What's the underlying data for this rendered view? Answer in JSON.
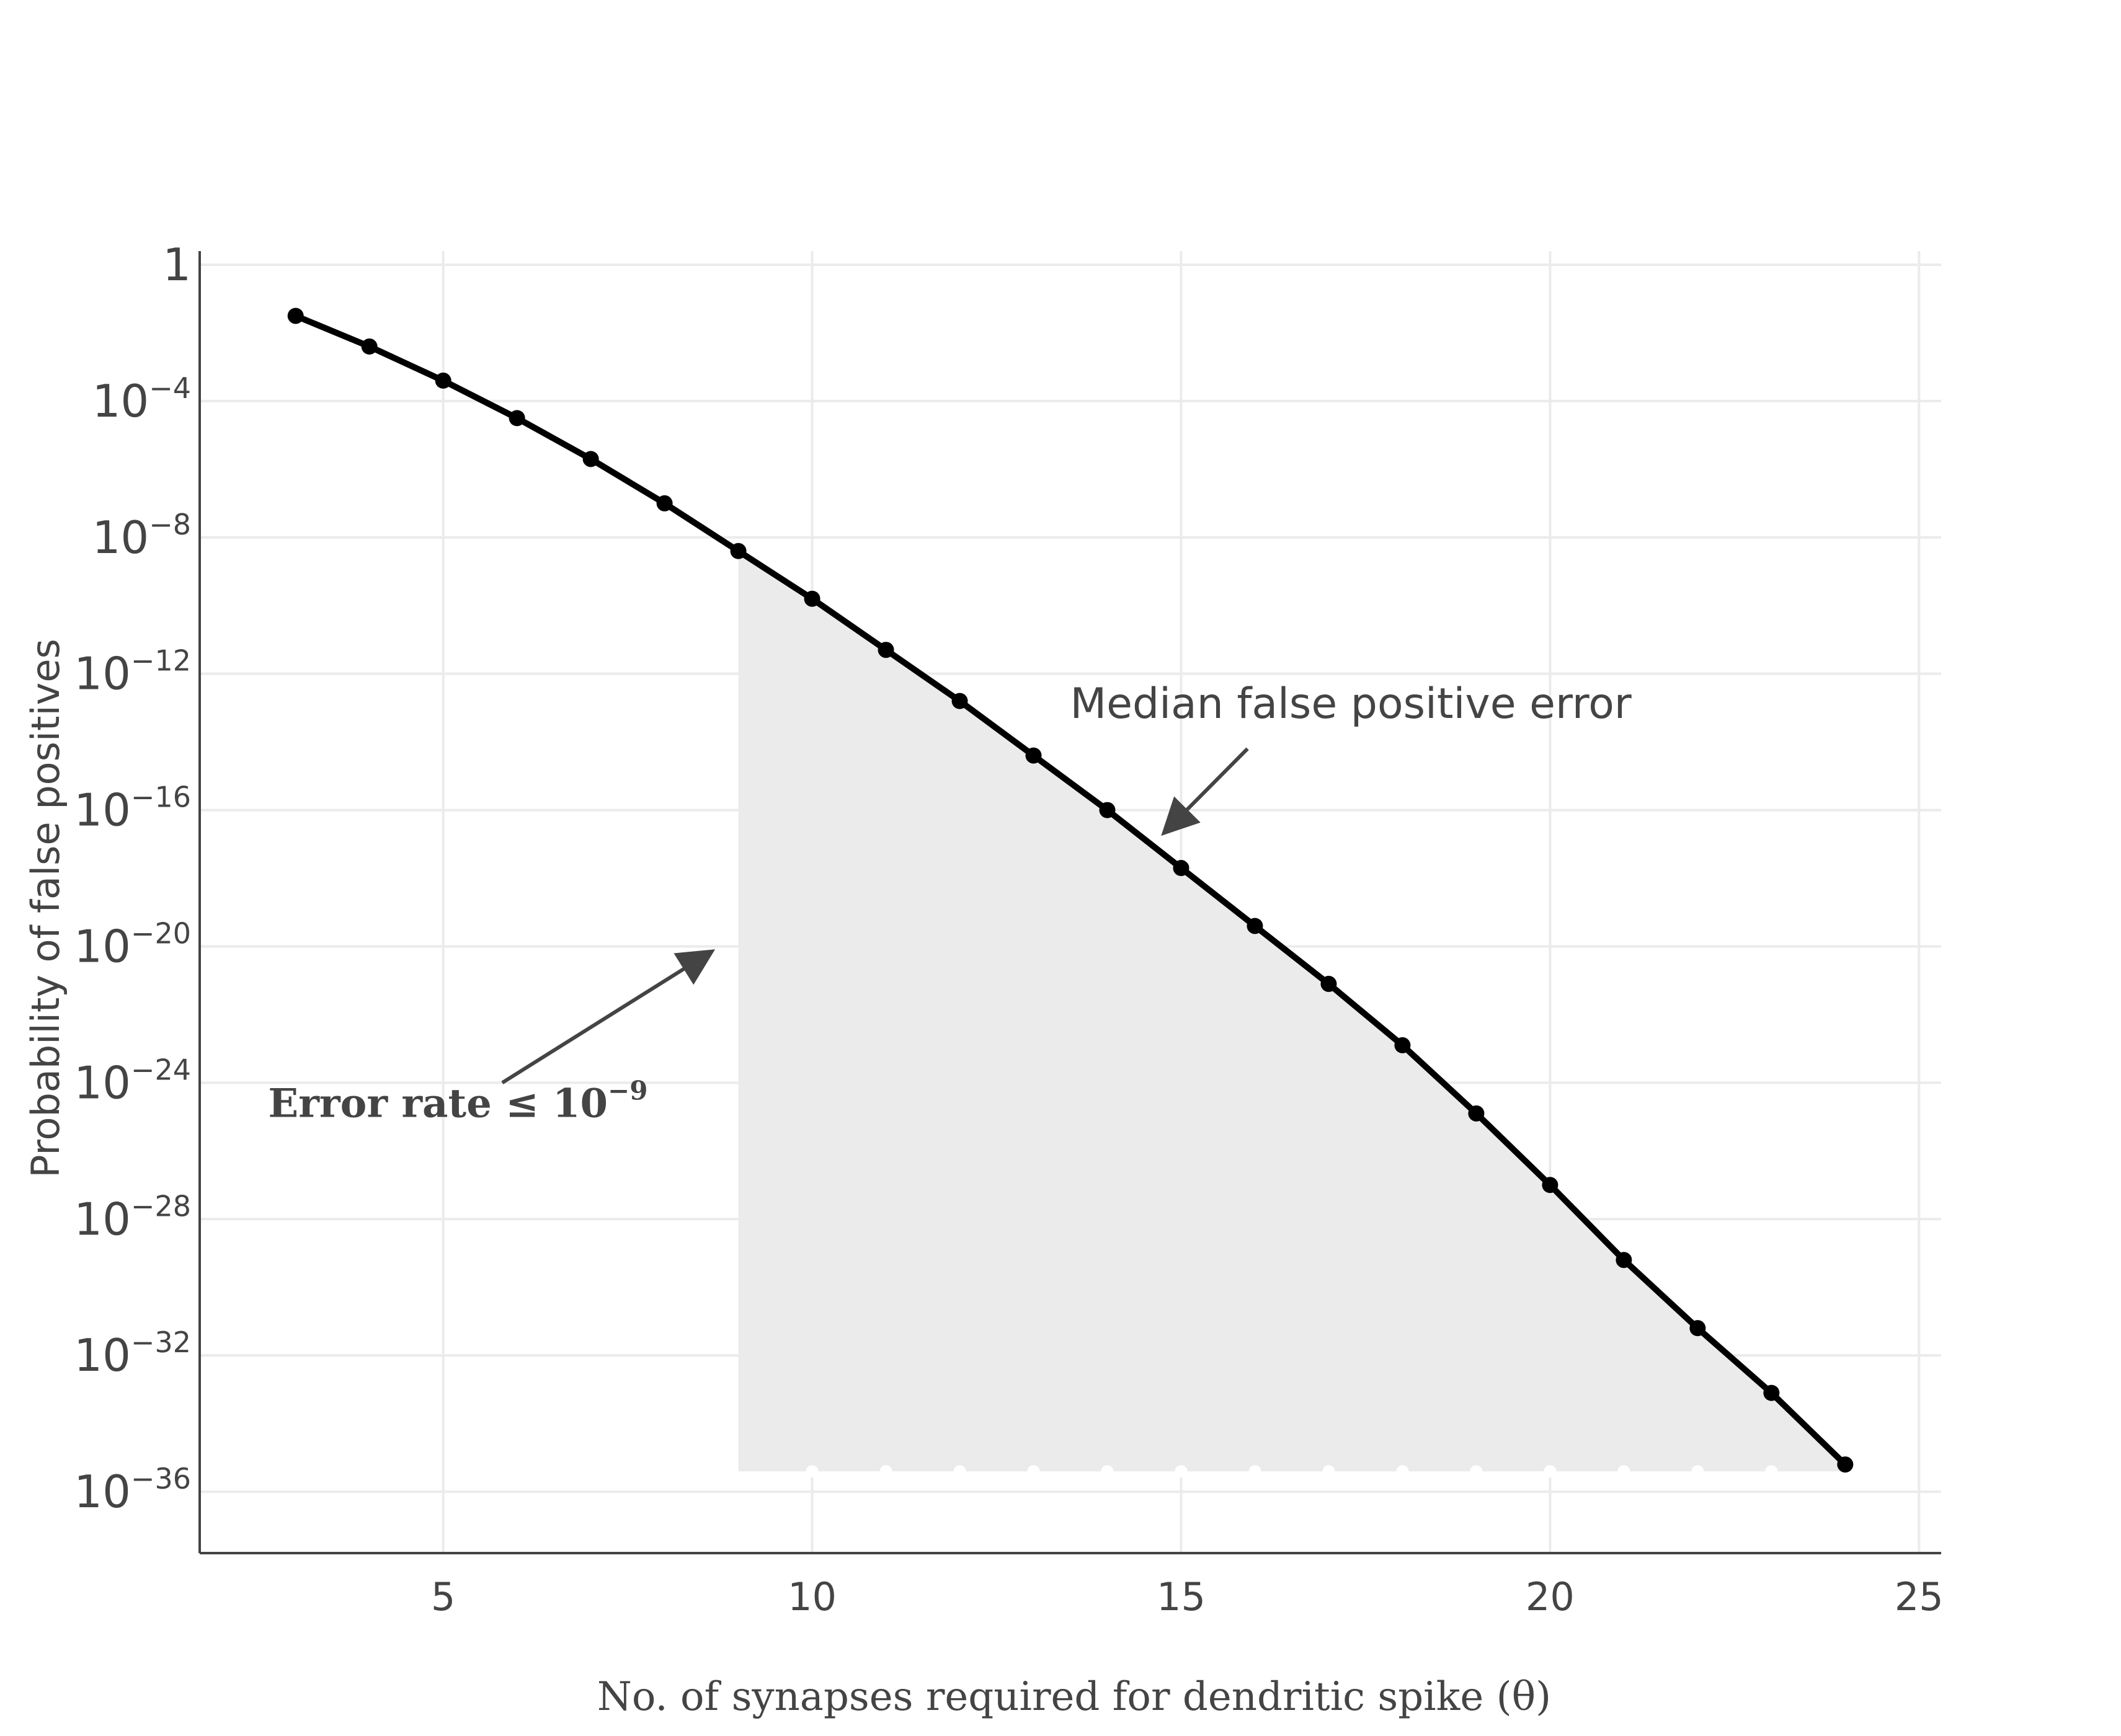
{
  "chart_data": {
    "type": "line",
    "title": "",
    "xlabel": "No. of synapses required for dendritic spike (θ)",
    "ylabel": "Probability of false positives",
    "yscale": "log",
    "xlim": [
      1.7,
      25.3
    ],
    "ylim_log10": [
      -37.8,
      0.4
    ],
    "x_ticks": [
      5,
      10,
      15,
      20,
      25
    ],
    "x_tick_labels": [
      "5",
      "10",
      "15",
      "20",
      "25"
    ],
    "y_ticks_log10": [
      0,
      -4,
      -8,
      -12,
      -16,
      -20,
      -24,
      -28,
      -32,
      -36
    ],
    "y_tick_labels": [
      {
        "base": "1",
        "exp": ""
      },
      {
        "base": "10",
        "exp": "−4"
      },
      {
        "base": "10",
        "exp": "−8"
      },
      {
        "base": "10",
        "exp": "−12"
      },
      {
        "base": "10",
        "exp": "−16"
      },
      {
        "base": "10",
        "exp": "−20"
      },
      {
        "base": "10",
        "exp": "−24"
      },
      {
        "base": "10",
        "exp": "−28"
      },
      {
        "base": "10",
        "exp": "−32"
      },
      {
        "base": "10",
        "exp": "−36"
      }
    ],
    "grid": true,
    "series": [
      {
        "x": [
          3,
          4,
          5,
          6,
          7,
          8,
          9,
          10,
          11,
          12,
          13,
          14,
          15,
          16,
          17,
          18,
          19,
          20,
          21,
          22,
          23,
          24
        ],
        "y_log10": [
          -1.5,
          -2.4,
          -3.4,
          -4.5,
          -5.7,
          -7.0,
          -8.4,
          -9.8,
          -11.3,
          -12.8,
          -14.4,
          -16.0,
          -17.7,
          -19.4,
          -21.1,
          -22.9,
          -24.9,
          -27.0,
          -29.2,
          -31.2,
          -33.1,
          -35.2
        ],
        "color": "#000000"
      }
    ],
    "shaded_region": {
      "x": [
        9,
        24
      ],
      "lower_log10": -35.4,
      "color": "#ebebeb"
    },
    "annotations": [
      {
        "text": "Median false positive error",
        "x": 17.3,
        "y_log10": -13.3,
        "arrow_to": {
          "x": 14.8,
          "y_log10": -16.6
        }
      },
      {
        "text": "Error rate ≤ 10",
        "sup": "−9",
        "x": 5.2,
        "y_log10": -25.0,
        "arrow_to": {
          "x": 8.6,
          "y_log10": -20.2
        }
      }
    ]
  }
}
